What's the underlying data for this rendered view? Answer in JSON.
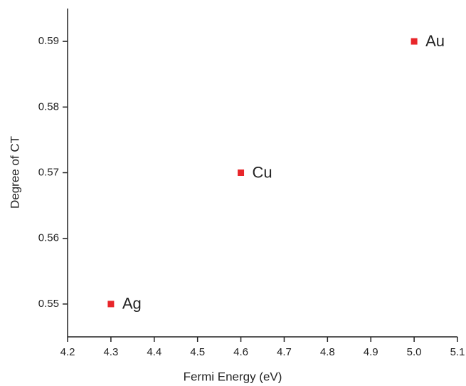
{
  "chart_data": {
    "type": "scatter",
    "x_label": "Fermi Energy (eV)",
    "y_label": "Degree of CT",
    "x": [
      4.3,
      4.6,
      5.0
    ],
    "values": [
      0.55,
      0.57,
      0.59
    ],
    "point_labels": [
      "Ag",
      "Cu",
      "Au"
    ],
    "color": "#e8262a",
    "xlim": [
      4.2,
      5.1
    ],
    "xticks": [
      4.2,
      4.3,
      4.4,
      4.5,
      4.6,
      4.7,
      4.8,
      4.9,
      {
        "value": 5,
        "label": "5.0"
      },
      5.1
    ],
    "ylim": [
      0.545,
      0.595
    ],
    "yticks": [
      0.55,
      0.56,
      0.57,
      0.58,
      0.59
    ],
    "grid": false
  }
}
